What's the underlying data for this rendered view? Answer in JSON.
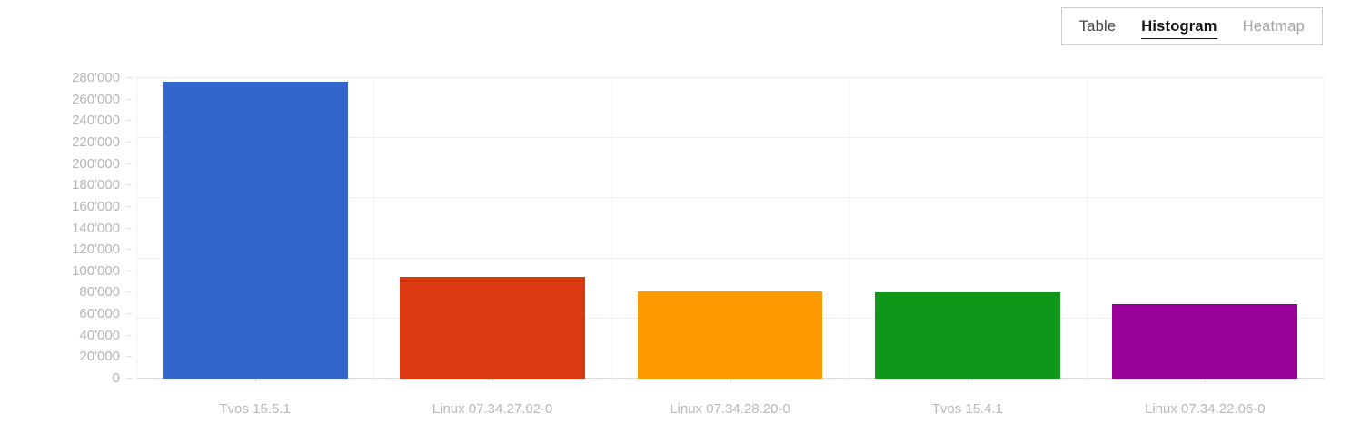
{
  "tabs": {
    "items": [
      {
        "label": "Table",
        "active": false,
        "muted": false
      },
      {
        "label": "Histogram",
        "active": true,
        "muted": false
      },
      {
        "label": "Heatmap",
        "active": false,
        "muted": true
      }
    ]
  },
  "chart_data": {
    "type": "bar",
    "title": "",
    "xlabel": "",
    "ylabel": "",
    "categories": [
      "Tvos 15.5.1",
      "Linux 07.34.27.02-0",
      "Linux 07.34.28.20-0",
      "Tvos 15.4.1",
      "Linux 07.34.22.06-0"
    ],
    "values": [
      277000,
      94500,
      81000,
      80000,
      69000
    ],
    "bar_colors": [
      "#3366cc",
      "#dc3912",
      "#ff9900",
      "#109618",
      "#990099"
    ],
    "ylim": [
      0,
      280000
    ],
    "ytick_step": 20000,
    "ytick_labels": [
      "0",
      "20'000",
      "40'000",
      "60'000",
      "80'000",
      "100'000",
      "120'000",
      "140'000",
      "160'000",
      "180'000",
      "200'000",
      "220'000",
      "240'000",
      "260'000",
      "280'000"
    ],
    "gridline_values": [
      0,
      56000,
      112000,
      168000,
      224000,
      280000
    ],
    "grid": true,
    "legend_position": "none"
  },
  "colors": {
    "grid": "#efefef",
    "baseline": "#dcdcdc",
    "tick": "#dedede",
    "axis_text": "#b5b5ba",
    "tab_active_text": "#141414",
    "tab_text": "#444444",
    "tab_muted_text": "#a2a2a2",
    "tab_border": "#cbcbcb"
  }
}
